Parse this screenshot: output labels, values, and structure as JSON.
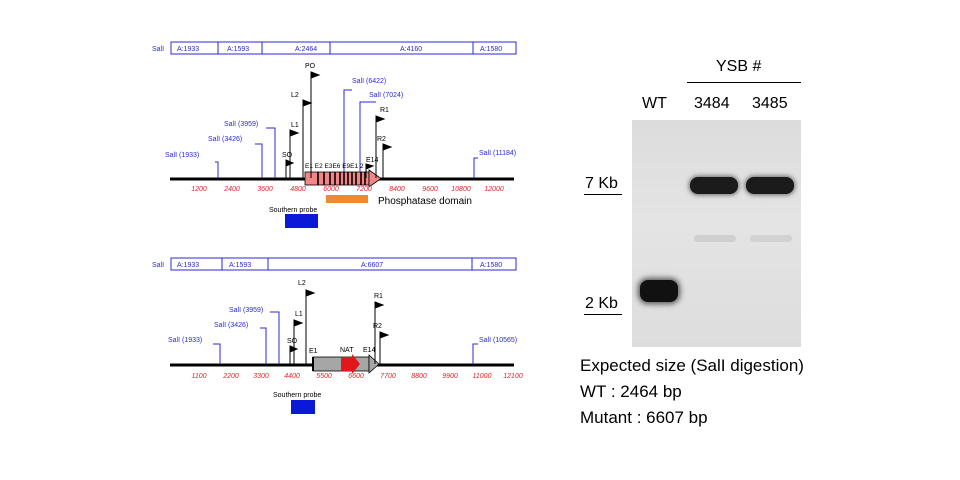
{
  "colors": {
    "map_blue": "#2a2ad6",
    "axis_red": "#e0242a",
    "gene_box": "#f28585",
    "phosphatase_bar": "#f08a32",
    "probe": "#0a18d8",
    "nat_gray": "#a6a6a6",
    "nat_arrow": "#e0181c"
  },
  "wt_map": {
    "fragments": [
      "A:1933",
      "A:1593",
      "A:2464",
      "A:4160",
      "A:1580"
    ],
    "sites": [
      {
        "label": "SalI",
        "pos": ""
      },
      {
        "label": "SalI (1933)"
      },
      {
        "label": "SalI (3426)"
      },
      {
        "label": "SalI (3959)"
      },
      {
        "label": "SalI (6422)"
      },
      {
        "label": "SalI (7024)"
      },
      {
        "label": "SalI (11184)"
      }
    ],
    "primers": [
      "SO",
      "L1",
      "L2",
      "PO",
      "R1",
      "R2",
      "E14"
    ],
    "exon_labels": "E1 E2 E3E6 E9E1 2",
    "ticks": [
      "1200",
      "2400",
      "3600",
      "4800",
      "6000",
      "7200",
      "8400",
      "9600",
      "10800",
      "12000"
    ],
    "domain_label": "Phosphatase domain",
    "probe_label": "Southern probe"
  },
  "mut_map": {
    "fragments": [
      "A:1933",
      "A:1593",
      "A:6607",
      "A:1580"
    ],
    "sites": [
      {
        "label": "SalI"
      },
      {
        "label": "SalI (1933)"
      },
      {
        "label": "SalI (3426)"
      },
      {
        "label": "SalI (3959)"
      },
      {
        "label": "SalI (10565)"
      }
    ],
    "primers": [
      "SO",
      "L1",
      "L2",
      "R1",
      "R2",
      "E1",
      "NAT",
      "E14"
    ],
    "ticks": [
      "1100",
      "2200",
      "3300",
      "4400",
      "5500",
      "6600",
      "7700",
      "8800",
      "9900",
      "11000",
      "12100"
    ],
    "probe_label": "Southern probe"
  },
  "gel": {
    "header": "YSB #",
    "lanes": [
      "WT",
      "3484",
      "3485"
    ],
    "markers": [
      {
        "label": "7 Kb"
      },
      {
        "label": "2 Kb"
      }
    ],
    "bands": [
      {
        "lane": "WT",
        "size_kb": 2
      },
      {
        "lane": "3484",
        "size_kb": 7
      },
      {
        "lane": "3485",
        "size_kb": 7
      }
    ]
  },
  "notes": {
    "line1": "Expected size (SalI digestion)",
    "line2": "WT : 2464 bp",
    "line3": "Mutant : 6607 bp"
  }
}
